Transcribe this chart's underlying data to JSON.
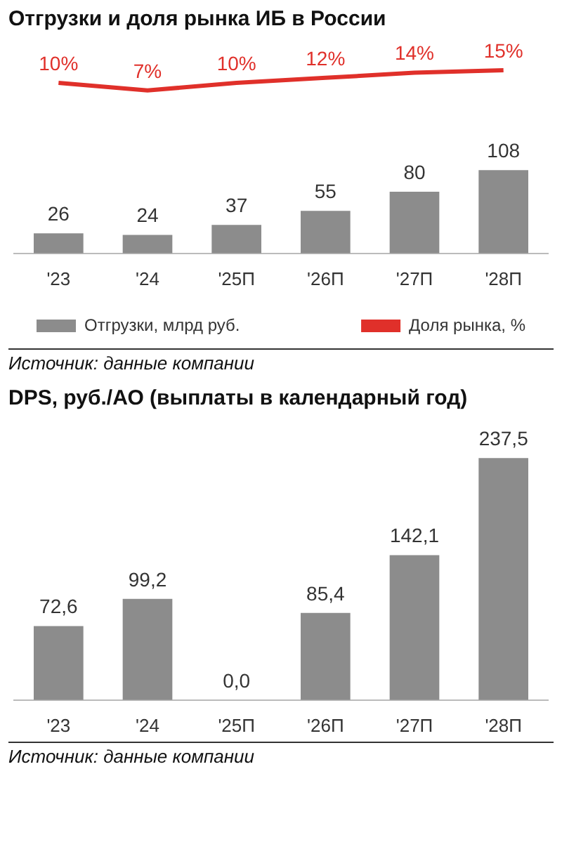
{
  "chart_data": [
    {
      "type": "line",
      "title": "Отгрузки и доля рынка ИБ в России",
      "categories": [
        null,
        null,
        null,
        null,
        null,
        null
      ],
      "series": [
        {
          "name": "Доля рынка, %",
          "color": "#e0302a",
          "values": [
            10,
            7,
            10,
            12,
            14,
            15
          ],
          "value_labels": [
            "10%",
            "7%",
            "10%",
            "12%",
            "14%",
            "15%"
          ]
        }
      ],
      "tick_labels": false,
      "legend": "bottom right",
      "marker": "none"
    },
    {
      "type": "bar",
      "categories": [
        "'23",
        "'24",
        "'25П",
        "'26П",
        "'27П",
        "'28П"
      ],
      "series": [
        {
          "name": "Отгрузки, млрд руб.",
          "type": "bar",
          "color": "#8c8c8c",
          "values": [
            26,
            24,
            37,
            55,
            80,
            108
          ],
          "value_labels": [
            "26",
            "24",
            "37",
            "55",
            "80",
            "108"
          ]
        }
      ],
      "tick_labels": "x",
      "legend": "bottom left",
      "annotations": [
        "Источник: данные компании"
      ]
    },
    {
      "type": "bar",
      "title": "DPS, руб./АО (выплаты в календарный год)",
      "categories": [
        "'23",
        "'24",
        "'25П",
        "'26П",
        "'27П",
        "'28П"
      ],
      "series": [
        {
          "type": "bar",
          "color": "#8c8c8c",
          "values": [
            72.6,
            99.2,
            0.0,
            85.4,
            142.1,
            237.5
          ],
          "value_labels": [
            "72,6",
            "99,2",
            "0,0",
            "85,4",
            "142,1",
            "237,5"
          ]
        }
      ],
      "tick_labels": "x",
      "annotations": [
        "Источник: данные компании"
      ]
    }
  ]
}
